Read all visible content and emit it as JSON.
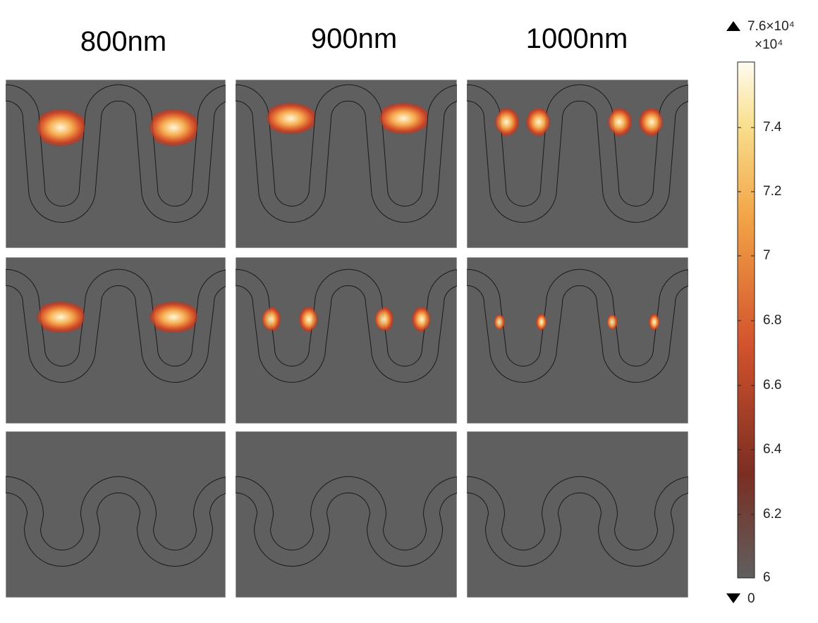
{
  "columns": [
    "800nm",
    "900nm",
    "1000nm"
  ],
  "colorbar": {
    "max_label": "7.6×10⁴",
    "unit_label": "×10⁴",
    "ticks": [
      "7.4",
      "7.2",
      "7",
      "6.8",
      "6.6",
      "6.4",
      "6.2",
      "6"
    ],
    "min_label": "0"
  }
}
